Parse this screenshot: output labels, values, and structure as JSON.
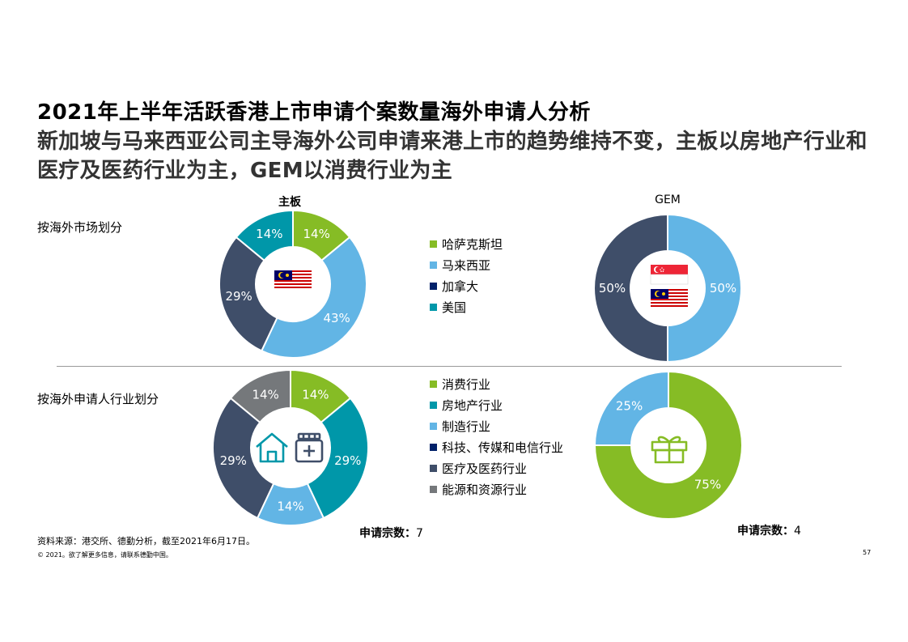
{
  "title": "2021年上半年活跃香港上市申请个案数量海外申请人分析",
  "subtitle": "新加坡与马来西亚公司主导海外公司申请来港上市的趋势维持不变，主板以房地产行业和医疗及医药行业为主，GEM以消费行业为主",
  "section_market": "按海外市场划分",
  "section_industry": "按海外申请人行业划分",
  "header_main": "主板",
  "header_gem": "GEM",
  "count_main_label": "申请宗数：",
  "count_main_value": "7",
  "count_gem_label": "申请宗数：",
  "count_gem_value": "4",
  "source": "资料来源：港交所、德勤分析，截至2021年6月17日。",
  "copyright": "© 2021。欲了解更多信息，请联系德勤中国。",
  "page_number": "57",
  "colors": {
    "green": "#86BC25",
    "light_blue": "#62B5E5",
    "navy": "#012169",
    "teal": "#0097A9",
    "slate": "#3F4E69",
    "gray": "#75787B",
    "text_gray": "#333333"
  },
  "legend_market": [
    {
      "label": "哈萨克斯坦",
      "color": "#86BC25"
    },
    {
      "label": "马来西亚",
      "color": "#62B5E5"
    },
    {
      "label": "加拿大",
      "color": "#012169"
    },
    {
      "label": "美国",
      "color": "#0097A9"
    }
  ],
  "legend_industry": [
    {
      "label": "消费行业",
      "color": "#86BC25"
    },
    {
      "label": "房地产行业",
      "color": "#0097A9"
    },
    {
      "label": "制造行业",
      "color": "#62B5E5"
    },
    {
      "label": "科技、传媒和电信行业",
      "color": "#012169"
    },
    {
      "label": "医疗及医药行业",
      "color": "#3F4E69"
    },
    {
      "label": "能源和资源行业",
      "color": "#75787B"
    }
  ],
  "chart_data": [
    {
      "type": "pie",
      "title": "主板",
      "categories": [
        "哈萨克斯坦",
        "马来西亚",
        "加拿大",
        "美国"
      ],
      "values": [
        14,
        43,
        29,
        14
      ],
      "labels": [
        "14%",
        "43%",
        "29%",
        "14%"
      ],
      "colors": [
        "#86BC25",
        "#62B5E5",
        "#3F4E69",
        "#0097A9"
      ]
    },
    {
      "type": "pie",
      "title": "GEM",
      "categories": [
        "马来西亚",
        "加拿大"
      ],
      "values": [
        50,
        50
      ],
      "labels": [
        "50%",
        "50%"
      ],
      "colors": [
        "#62B5E5",
        "#3F4E69"
      ]
    },
    {
      "type": "pie",
      "title": "",
      "categories": [
        "消费行业",
        "房地产行业",
        "制造行业",
        "医疗及医药行业",
        "能源和资源行业"
      ],
      "values": [
        14,
        29,
        14,
        29,
        14
      ],
      "labels": [
        "14%",
        "29%",
        "14%",
        "29%",
        "14%"
      ],
      "colors": [
        "#86BC25",
        "#0097A9",
        "#62B5E5",
        "#3F4E69",
        "#75787B"
      ]
    },
    {
      "type": "pie",
      "title": "",
      "categories": [
        "消费行业",
        "制造行业"
      ],
      "values": [
        75,
        25
      ],
      "labels": [
        "75%",
        "25%"
      ],
      "colors": [
        "#86BC25",
        "#62B5E5"
      ]
    }
  ]
}
